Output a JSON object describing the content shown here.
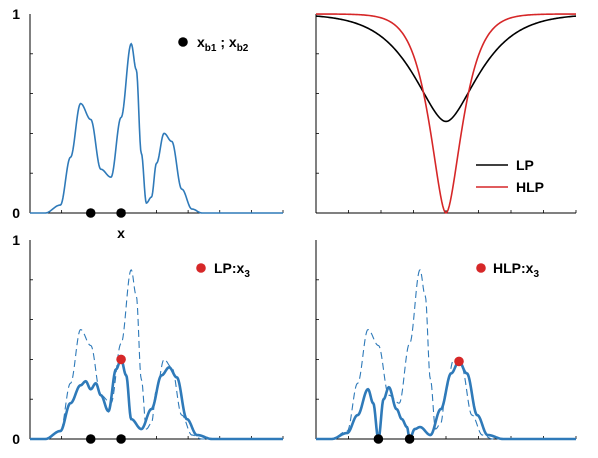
{
  "chart_data": [
    {
      "type": "line",
      "panel": "top-left",
      "yticklabels": [
        "0",
        "1"
      ],
      "xlabel": "x",
      "ylim": [
        0,
        1
      ],
      "xlim": [
        0,
        1
      ],
      "series": [
        {
          "color": "#2f7ab9",
          "style": "solid",
          "x": [
            0.0,
            0.06,
            0.12,
            0.16,
            0.2,
            0.24,
            0.28,
            0.32,
            0.36,
            0.4,
            0.42,
            0.44,
            0.46,
            0.48,
            0.5,
            0.53,
            0.56,
            0.6,
            0.64,
            0.68,
            0.72,
            0.76,
            0.8,
            0.84,
            0.88,
            0.94,
            1.0
          ],
          "values": [
            0.0,
            0.0,
            0.04,
            0.28,
            0.55,
            0.47,
            0.22,
            0.18,
            0.48,
            0.85,
            0.72,
            0.3,
            0.05,
            0.08,
            0.25,
            0.4,
            0.36,
            0.12,
            0.02,
            0.0,
            0.0,
            0.0,
            0.0,
            0.0,
            0.0,
            0.0,
            0.0
          ]
        }
      ],
      "markers": [
        {
          "label": "x_b1 ; x_b2",
          "color": "#000000",
          "points": [
            {
              "x": 0.24,
              "y": 0.0
            },
            {
              "x": 0.36,
              "y": 0.0
            }
          ]
        }
      ],
      "legend": {
        "position": "top-right",
        "label_parts": [
          {
            "text": "x",
            "sub": "b1"
          },
          {
            "text": " ; x",
            "sub": "b2"
          }
        ]
      }
    },
    {
      "type": "line",
      "panel": "top-right",
      "xlim": [
        -1,
        1
      ],
      "ylim": [
        0,
        1
      ],
      "series": [
        {
          "name": "LP",
          "color": "#000000",
          "kind": "LP"
        },
        {
          "name": "HLP",
          "color": "#d62728",
          "kind": "HLP"
        }
      ],
      "legend": {
        "position": "lower-right",
        "labels": [
          "LP",
          "HLP"
        ]
      }
    },
    {
      "type": "line",
      "panel": "bottom-left",
      "yticklabels": [
        "0",
        "1"
      ],
      "ylim": [
        0,
        1
      ],
      "xlim": [
        0,
        1
      ],
      "series": [
        {
          "style": "dashed",
          "color": "#2f7ab9",
          "ref": "top-left"
        },
        {
          "color": "#2f7ab9",
          "style": "solid-thick",
          "x": [
            0.0,
            0.06,
            0.12,
            0.16,
            0.2,
            0.22,
            0.24,
            0.26,
            0.28,
            0.31,
            0.34,
            0.36,
            0.38,
            0.4,
            0.44,
            0.48,
            0.52,
            0.55,
            0.58,
            0.62,
            0.66,
            0.72,
            0.8,
            0.9,
            1.0
          ],
          "values": [
            0.0,
            0.0,
            0.04,
            0.18,
            0.27,
            0.29,
            0.25,
            0.28,
            0.22,
            0.14,
            0.35,
            0.4,
            0.32,
            0.1,
            0.05,
            0.15,
            0.32,
            0.36,
            0.31,
            0.1,
            0.02,
            0.0,
            0.0,
            0.0,
            0.0
          ]
        }
      ],
      "markers": [
        {
          "label": "LP:x_3",
          "color": "#d62728",
          "points": [
            {
              "x": 0.36,
              "y": 0.4
            }
          ]
        },
        {
          "color": "#000000",
          "points": [
            {
              "x": 0.24,
              "y": 0.0
            },
            {
              "x": 0.36,
              "y": 0.0
            }
          ]
        }
      ],
      "legend": {
        "position": "top-right",
        "label_parts": [
          {
            "text": "LP:x",
            "sub": "3"
          }
        ]
      }
    },
    {
      "type": "line",
      "panel": "bottom-right",
      "ylim": [
        0,
        1
      ],
      "xlim": [
        0,
        1
      ],
      "series": [
        {
          "style": "dashed",
          "color": "#2f7ab9",
          "ref": "top-left"
        },
        {
          "color": "#2f7ab9",
          "style": "solid-thick",
          "x": [
            0.0,
            0.06,
            0.12,
            0.16,
            0.2,
            0.22,
            0.24,
            0.26,
            0.28,
            0.31,
            0.33,
            0.35,
            0.36,
            0.38,
            0.4,
            0.44,
            0.48,
            0.52,
            0.55,
            0.58,
            0.62,
            0.66,
            0.72,
            0.8,
            0.9,
            1.0
          ],
          "values": [
            0.0,
            0.0,
            0.03,
            0.12,
            0.25,
            0.18,
            0.0,
            0.2,
            0.26,
            0.15,
            0.1,
            0.06,
            0.0,
            0.05,
            0.06,
            0.02,
            0.15,
            0.33,
            0.39,
            0.33,
            0.12,
            0.02,
            0.0,
            0.0,
            0.0,
            0.0
          ]
        }
      ],
      "markers": [
        {
          "label": "HLP:x_3",
          "color": "#d62728",
          "points": [
            {
              "x": 0.55,
              "y": 0.39
            }
          ]
        },
        {
          "color": "#000000",
          "points": [
            {
              "x": 0.24,
              "y": 0.0
            },
            {
              "x": 0.36,
              "y": 0.0
            }
          ]
        }
      ],
      "legend": {
        "position": "top-right",
        "label_parts": [
          {
            "text": "HLP:x",
            "sub": "3"
          }
        ]
      }
    }
  ]
}
